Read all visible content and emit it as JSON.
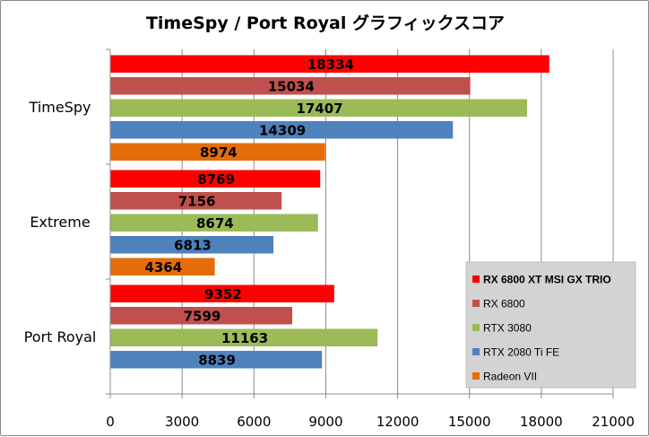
{
  "chart_data": {
    "type": "bar",
    "orientation": "horizontal",
    "title": "TimeSpy / Port Royal グラフィックスコア",
    "categories": [
      "TimeSpy",
      "Extreme",
      "Port Royal"
    ],
    "series": [
      {
        "name": "RX 6800 XT MSI GX TRIO",
        "color": "#ff0000",
        "values": [
          18334,
          8769,
          9352
        ]
      },
      {
        "name": "RX 6800",
        "color": "#c0504d",
        "values": [
          15034,
          7156,
          7599
        ]
      },
      {
        "name": "RTX 3080",
        "color": "#9bbb59",
        "values": [
          17407,
          8674,
          11163
        ]
      },
      {
        "name": "RTX 2080 Ti FE",
        "color": "#4f81bd",
        "values": [
          14309,
          6813,
          8839
        ]
      },
      {
        "name": "Radeon VII",
        "color": "#e46c0a",
        "values": [
          8974,
          4364,
          null
        ]
      }
    ],
    "xlim": [
      0,
      21000
    ],
    "xticks": [
      "0",
      "3000",
      "6000",
      "9000",
      "12000",
      "15000",
      "18000",
      "21000"
    ],
    "grid": "vertical",
    "legend_position": "bottom-right",
    "legend_bold_first": true,
    "data_labels": true
  }
}
